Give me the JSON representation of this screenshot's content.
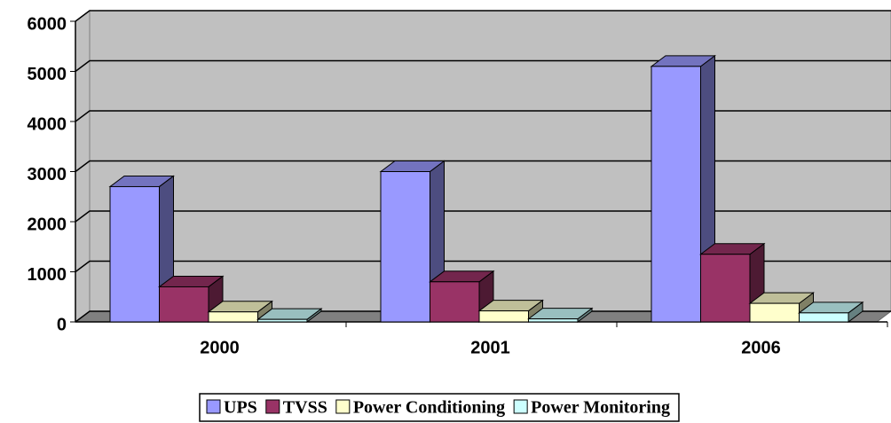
{
  "chart_data": {
    "type": "bar3d",
    "categories": [
      "2000",
      "2001",
      "2006"
    ],
    "series": [
      {
        "name": "UPS",
        "color": "#9999ff",
        "values": [
          2700,
          3000,
          5100
        ]
      },
      {
        "name": "TVSS",
        "color": "#993366",
        "values": [
          700,
          800,
          1350
        ]
      },
      {
        "name": "Power Conditioning",
        "color": "#ffffcc",
        "values": [
          200,
          220,
          370
        ]
      },
      {
        "name": "Power Monitoring",
        "color": "#ccffff",
        "values": [
          50,
          60,
          180
        ]
      }
    ],
    "ylim": [
      0,
      6000
    ],
    "yticks": [
      0,
      1000,
      2000,
      3000,
      4000,
      5000,
      6000
    ],
    "grid": true,
    "legend": "bottom"
  }
}
